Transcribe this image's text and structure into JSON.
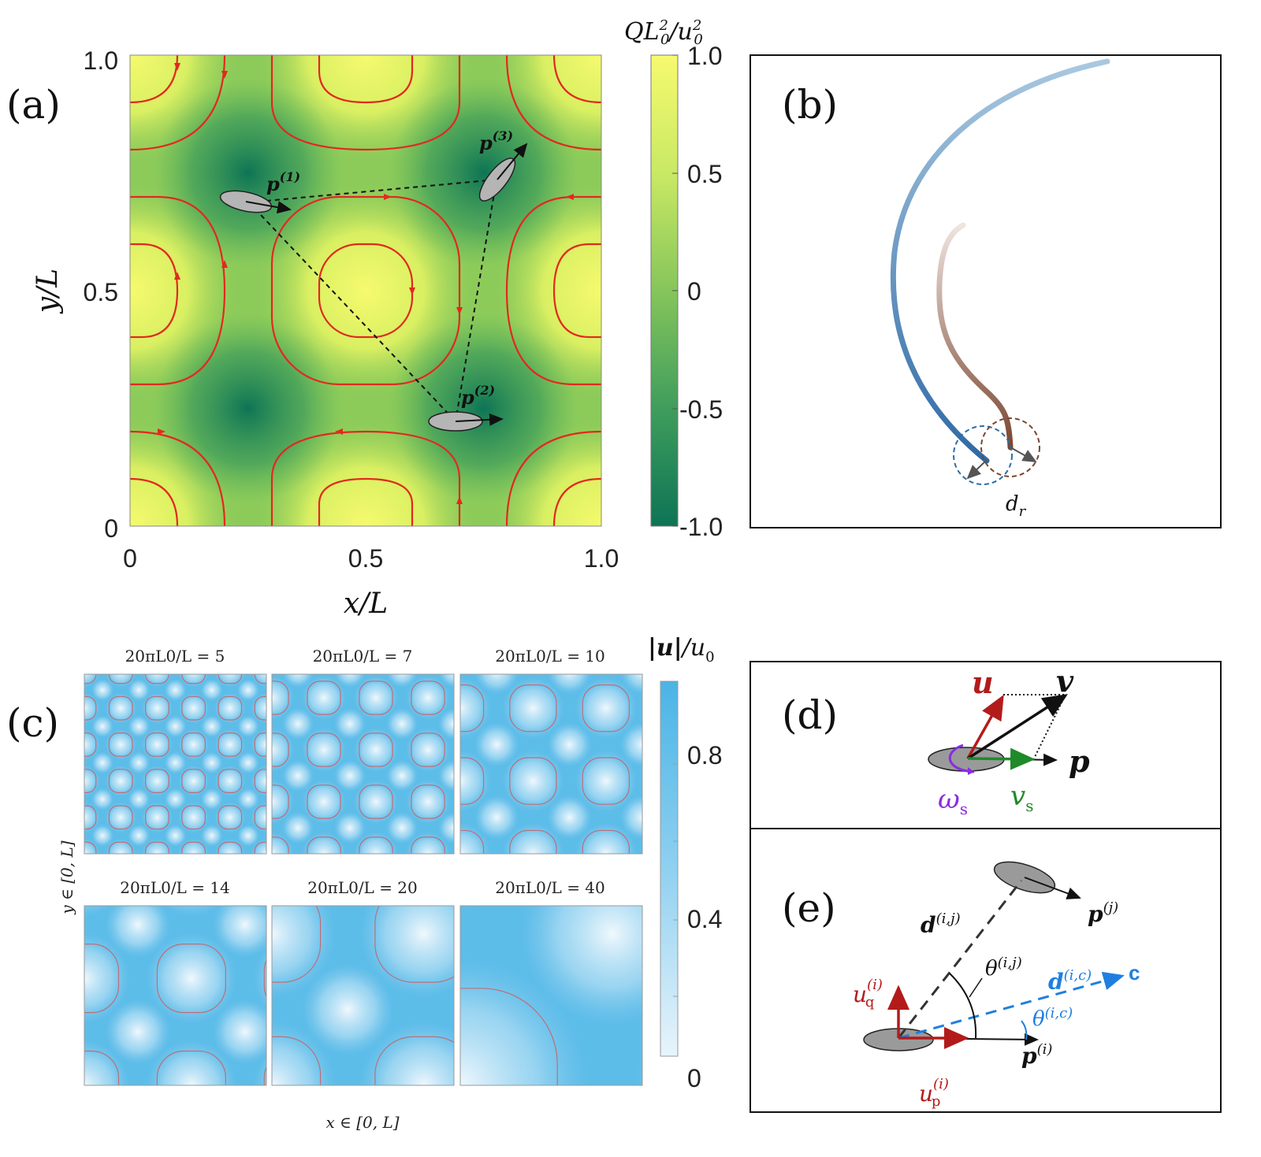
{
  "panel_a": {
    "label": "(a)",
    "xlabel": "x/L",
    "ylabel": "y/L",
    "x_ticks": [
      "0",
      "0.5",
      "1.0"
    ],
    "y_ticks": [
      "0",
      "0.5",
      "1.0"
    ],
    "particles": [
      "p(1)",
      "p(2)",
      "p(3)"
    ],
    "colorbar": {
      "title": "QL0²/u0²",
      "ticks": [
        "1.0",
        "0.5",
        "0",
        "-0.5",
        "-1.0"
      ],
      "colors": {
        "high": "#f6fa6e",
        "low": "#0d7455"
      }
    }
  },
  "panel_b": {
    "label": "(b)",
    "annotation": "d_r"
  },
  "panel_c": {
    "label": "(c)",
    "titles": [
      "20πL0/L = 5",
      "20πL0/L = 7",
      "20πL0/L = 10",
      "20πL0/L = 14",
      "20πL0/L = 20",
      "20πL0/L = 40"
    ],
    "xlabel": "x ∈ [0, L]",
    "ylabel": "y ∈ [0, L]",
    "colorbar": {
      "title": "|u|/u0",
      "ticks": [
        "0.8",
        "0.4",
        "0"
      ],
      "colors": {
        "high": "#4ab4e6",
        "low": "#e6f3fb"
      }
    }
  },
  "panel_d": {
    "label": "(d)",
    "vectors": [
      "u",
      "v",
      "p",
      "ω_s",
      "v_s"
    ]
  },
  "panel_e": {
    "label": "(e)",
    "labels": [
      "d(i,j)",
      "p(j)",
      "θ(i,j)",
      "d(i,c)",
      "c",
      "θ(i,c)",
      "u_q(i)",
      "u_p(i)",
      "p(i)"
    ]
  },
  "chart_data": {
    "type": "heatmap",
    "title": "",
    "xlabel": "x/L",
    "ylabel": "y/L",
    "xlim": [
      0,
      1
    ],
    "ylim": [
      0,
      1
    ],
    "colorbar_range": [
      -1,
      1
    ],
    "field": "Q L0^2/u0^2 of cellular flow",
    "particle_positions": [
      {
        "name": "p(1)",
        "x": 0.25,
        "y": 0.69
      },
      {
        "name": "p(2)",
        "x": 0.69,
        "y": 0.22
      },
      {
        "name": "p(3)",
        "x": 0.78,
        "y": 0.74
      }
    ]
  }
}
